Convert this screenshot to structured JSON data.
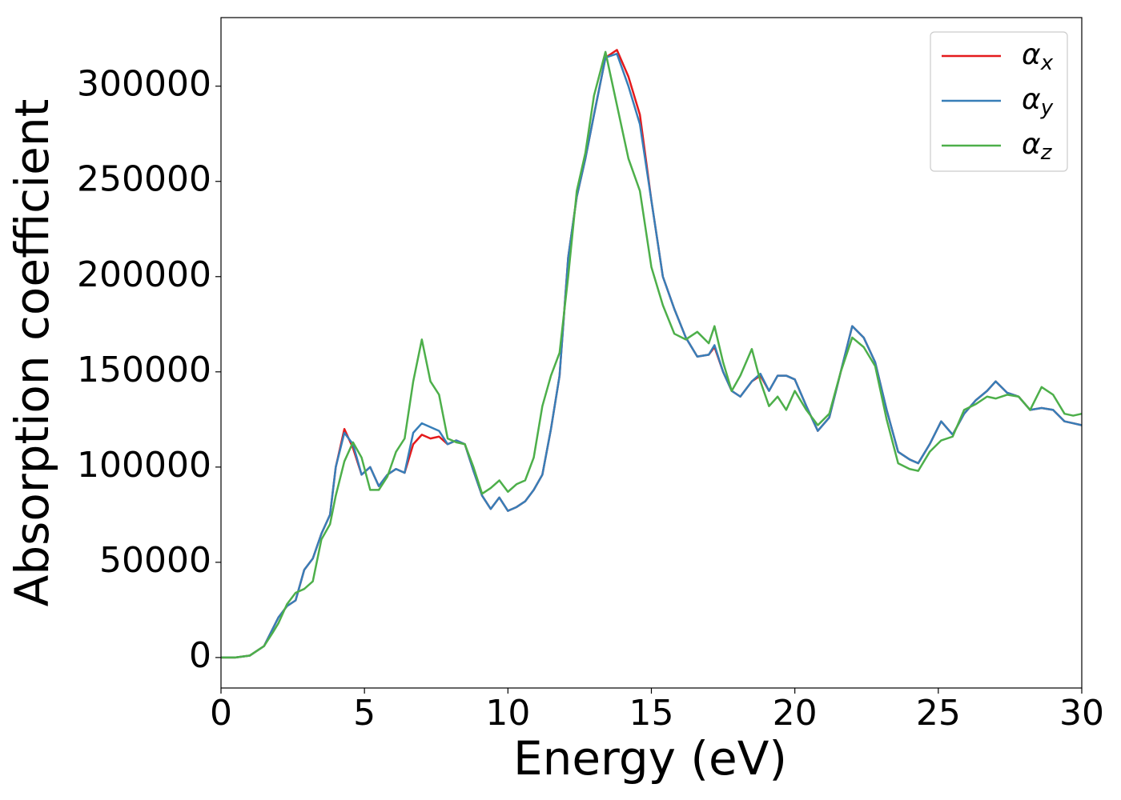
{
  "chart_data": {
    "type": "line",
    "xlabel": "Energy (eV)",
    "ylabel": "Absorption coefficient",
    "x": [
      0,
      0.5,
      1,
      1.5,
      1.8,
      2,
      2.3,
      2.6,
      2.9,
      3.2,
      3.5,
      3.8,
      4,
      4.3,
      4.6,
      4.9,
      5.2,
      5.5,
      5.8,
      6.1,
      6.4,
      6.7,
      7,
      7.3,
      7.6,
      7.9,
      8.2,
      8.5,
      8.8,
      9.1,
      9.4,
      9.7,
      10,
      10.3,
      10.6,
      10.9,
      11.2,
      11.5,
      11.8,
      12.1,
      12.4,
      12.7,
      13,
      13.4,
      13.8,
      14.2,
      14.6,
      15,
      15.4,
      15.8,
      16.2,
      16.6,
      17,
      17.2,
      17.5,
      17.8,
      18.1,
      18.5,
      18.8,
      19.1,
      19.4,
      19.7,
      20,
      20.4,
      20.8,
      21.2,
      21.6,
      22,
      22.4,
      22.8,
      23.2,
      23.6,
      24,
      24.3,
      24.7,
      25.1,
      25.5,
      25.9,
      26.3,
      26.7,
      27,
      27.4,
      27.8,
      28.2,
      28.6,
      29,
      29.4,
      29.7,
      30
    ],
    "series": [
      {
        "name": "αx",
        "color": "#e41a1c",
        "values": [
          0,
          0,
          1000,
          6000,
          15000,
          21000,
          27000,
          30000,
          46000,
          52000,
          65000,
          75000,
          100000,
          120000,
          110000,
          96000,
          100000,
          90000,
          96000,
          99000,
          97000,
          112000,
          117000,
          115000,
          116000,
          112000,
          114000,
          112000,
          98000,
          85000,
          78000,
          84000,
          77000,
          79000,
          82000,
          88000,
          96000,
          120000,
          148000,
          210000,
          242000,
          262000,
          285000,
          315000,
          319000,
          305000,
          285000,
          240000,
          200000,
          183000,
          168000,
          158000,
          159000,
          163000,
          150000,
          140000,
          137000,
          145000,
          148000,
          140000,
          148000,
          148000,
          146000,
          132000,
          119000,
          126000,
          150000,
          174000,
          168000,
          155000,
          130000,
          108000,
          104000,
          102000,
          112000,
          124000,
          117000,
          128000,
          135000,
          140000,
          145000,
          139000,
          137000,
          130000,
          131000,
          130000,
          124000,
          123000,
          122000
        ]
      },
      {
        "name": "αy",
        "color": "#377eb8",
        "values": [
          0,
          0,
          1000,
          6000,
          15000,
          21000,
          27000,
          30000,
          46000,
          52000,
          65000,
          75000,
          100000,
          118000,
          112000,
          96000,
          100000,
          90000,
          96000,
          99000,
          97000,
          118000,
          123000,
          121000,
          119000,
          112000,
          114000,
          112000,
          98000,
          85000,
          78000,
          84000,
          77000,
          79000,
          82000,
          88000,
          96000,
          120000,
          148000,
          210000,
          242000,
          262000,
          285000,
          315000,
          317000,
          300000,
          280000,
          240000,
          200000,
          183000,
          168000,
          158000,
          159000,
          164000,
          150000,
          140000,
          137000,
          145000,
          149000,
          140000,
          148000,
          148000,
          146000,
          132000,
          119000,
          126000,
          150000,
          174000,
          168000,
          155000,
          130000,
          108000,
          104000,
          102000,
          112000,
          124000,
          117000,
          128000,
          135000,
          140000,
          145000,
          139000,
          137000,
          130000,
          131000,
          130000,
          124000,
          123000,
          122000
        ]
      },
      {
        "name": "αz",
        "color": "#4daf4a",
        "values": [
          0,
          0,
          1000,
          6000,
          13000,
          18000,
          28000,
          34000,
          36000,
          40000,
          62000,
          70000,
          85000,
          103000,
          113000,
          105000,
          88000,
          88000,
          95000,
          108000,
          115000,
          145000,
          167000,
          145000,
          138000,
          115000,
          113000,
          112000,
          100000,
          86000,
          89000,
          93000,
          87000,
          91000,
          93000,
          105000,
          132000,
          148000,
          160000,
          200000,
          245000,
          265000,
          295000,
          318000,
          290000,
          262000,
          245000,
          205000,
          185000,
          170000,
          167000,
          171000,
          165000,
          174000,
          155000,
          140000,
          148000,
          162000,
          145000,
          132000,
          137000,
          130000,
          140000,
          130000,
          122000,
          128000,
          150000,
          168000,
          163000,
          153000,
          125000,
          102000,
          99000,
          98000,
          108000,
          114000,
          116000,
          130000,
          133000,
          137000,
          136000,
          138000,
          137000,
          130000,
          142000,
          138000,
          128000,
          127000,
          128000
        ]
      }
    ],
    "xlim": [
      0,
      30
    ],
    "xticks": [
      0,
      5,
      10,
      15,
      20,
      25,
      30
    ],
    "ylim": [
      -16000,
      336000
    ],
    "yticks": [
      0,
      50000,
      100000,
      150000,
      200000,
      250000,
      300000
    ],
    "grid": false,
    "legend": "upper right"
  }
}
